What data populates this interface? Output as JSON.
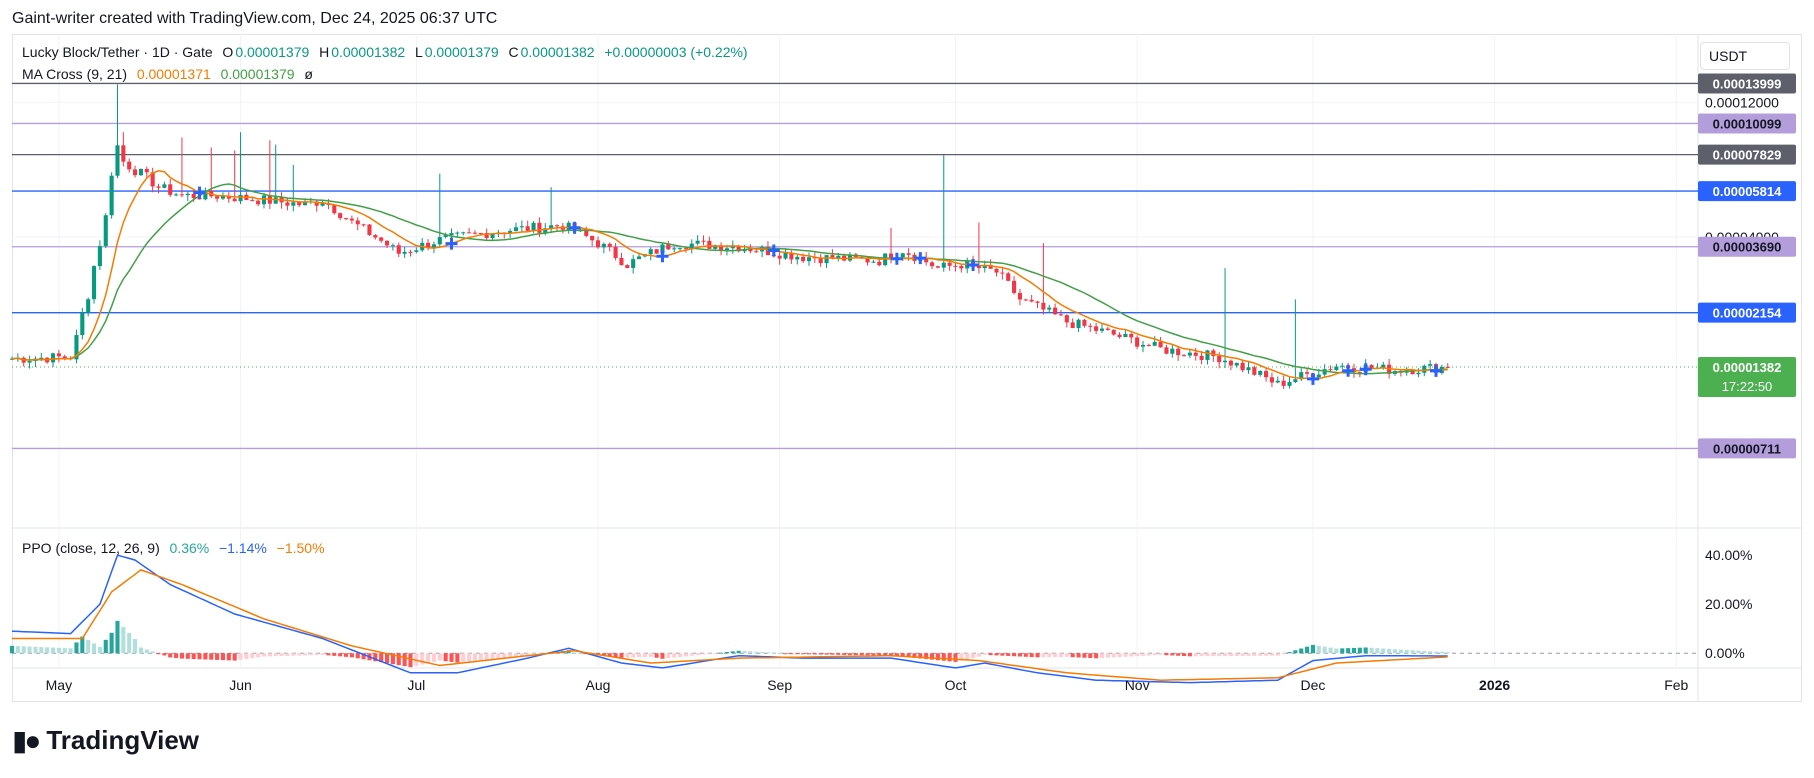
{
  "header": {
    "credit": "Gaint-writer created with TradingView.com, Dec 24, 2025 06:37 UTC"
  },
  "legend": {
    "symbol": "Lucky Block/Tether · 1D · Gate",
    "o_label": "O",
    "o": "0.00001379",
    "h_label": "H",
    "h": "0.00001382",
    "l_label": "L",
    "l": "0.00001379",
    "c_label": "C",
    "c": "0.00001382",
    "change": "+0.00000003 (+0.22%)",
    "ma_label": "MA Cross (9, 21)",
    "ma_fast": "0.00001371",
    "ma_slow": "0.00001379",
    "ma_extra": "ø",
    "ppo_label": "PPO (close, 12, 26, 9)",
    "ppo_hist": "0.36%",
    "ppo_line": "−1.14%",
    "ppo_signal": "−1.50%"
  },
  "currency": "USDT",
  "footer": {
    "logo_text": "TradingView"
  },
  "colors": {
    "up": "#089981",
    "down": "#f23645",
    "ma_fast": "#f57c00",
    "ma_slow": "#43a047",
    "ppo_line": "#2962ff",
    "ppo_signal": "#f57c00",
    "h_gray": "#5d606b",
    "h_blue": "#2962ff",
    "h_purple": "#b39ddb",
    "last_green": "#4caf50",
    "label_dark": "#5d606b"
  },
  "chart_data": {
    "type": "candlestick",
    "x_range": [
      "2025-04-23",
      "2026-02-03"
    ],
    "y_range": [
      4.3e-06,
      0.000144
    ],
    "y_ticks": [
      "0.00012000",
      "0.00004000"
    ],
    "x_ticks": [
      {
        "label": "May",
        "date": "2025-05-01"
      },
      {
        "label": "Jun",
        "date": "2025-06-01"
      },
      {
        "label": "Jul",
        "date": "2025-07-01"
      },
      {
        "label": "Aug",
        "date": "2025-08-01"
      },
      {
        "label": "Sep",
        "date": "2025-09-01"
      },
      {
        "label": "Oct",
        "date": "2025-10-01"
      },
      {
        "label": "Nov",
        "date": "2025-11-01"
      },
      {
        "label": "Dec",
        "date": "2025-12-01"
      },
      {
        "label": "2026",
        "date": "2026-01-01"
      },
      {
        "label": "Feb",
        "date": "2026-02-01"
      }
    ],
    "horizontal_levels": [
      {
        "value": 0.00013999,
        "label": "0.00013999",
        "style": "gray"
      },
      {
        "value": 0.00010099,
        "label": "0.00010099",
        "style": "purple"
      },
      {
        "value": 7.829e-05,
        "label": "0.00007829",
        "style": "gray"
      },
      {
        "value": 5.814e-05,
        "label": "0.00005814",
        "style": "blue"
      },
      {
        "value": 3.69e-05,
        "label": "0.00003690",
        "style": "purple"
      },
      {
        "value": 2.154e-05,
        "label": "0.00002154",
        "style": "blue"
      },
      {
        "value": 7.11e-06,
        "label": "0.00000711",
        "style": "purple"
      }
    ],
    "last_price": {
      "value": 1.382e-05,
      "label": "0.00001382",
      "countdown": "17:22:50"
    },
    "close_anchors": [
      [
        "2025-04-23",
        1.48e-05
      ],
      [
        "2025-05-03",
        1.5e-05
      ],
      [
        "2025-05-04",
        1.75e-05
      ],
      [
        "2025-05-06",
        2.5e-05
      ],
      [
        "2025-05-08",
        3.8e-05
      ],
      [
        "2025-05-09",
        4.7e-05
      ],
      [
        "2025-05-10",
        6.8e-05
      ],
      [
        "2025-05-11",
        8.4e-05
      ],
      [
        "2025-05-12",
        7.4e-05
      ],
      [
        "2025-05-14",
        6.9e-05
      ],
      [
        "2025-05-16",
        6.5e-05
      ],
      [
        "2025-05-18",
        6e-05
      ],
      [
        "2025-05-22",
        5.6e-05
      ],
      [
        "2025-05-28",
        5.6e-05
      ],
      [
        "2025-06-05",
        5.4e-05
      ],
      [
        "2025-06-12",
        5.2e-05
      ],
      [
        "2025-06-15",
        5.4e-05
      ],
      [
        "2025-06-20",
        4.5e-05
      ],
      [
        "2025-06-28",
        3.5e-05
      ],
      [
        "2025-07-05",
        3.9e-05
      ],
      [
        "2025-07-15",
        4.2e-05
      ],
      [
        "2025-07-26",
        4.4e-05
      ],
      [
        "2025-08-01",
        3.8e-05
      ],
      [
        "2025-08-06",
        3.2e-05
      ],
      [
        "2025-08-14",
        3.8e-05
      ],
      [
        "2025-08-25",
        3.7e-05
      ],
      [
        "2025-09-05",
        3.4e-05
      ],
      [
        "2025-09-18",
        3.3e-05
      ],
      [
        "2025-09-22",
        3.6e-05
      ],
      [
        "2025-09-28",
        3.1e-05
      ],
      [
        "2025-10-02",
        3.2e-05
      ],
      [
        "2025-10-08",
        3e-05
      ],
      [
        "2025-10-12",
        2.4e-05
      ],
      [
        "2025-10-20",
        2e-05
      ],
      [
        "2025-10-28",
        1.8e-05
      ],
      [
        "2025-11-05",
        1.6e-05
      ],
      [
        "2025-11-15",
        1.5e-05
      ],
      [
        "2025-11-25",
        1.2e-05
      ],
      [
        "2025-12-05",
        1.4e-05
      ],
      [
        "2025-12-15",
        1.35e-05
      ],
      [
        "2025-12-24",
        1.382e-05
      ]
    ],
    "wick_spikes": [
      [
        "2025-05-11",
        0.000139
      ],
      [
        "2025-05-12",
        9.4e-05
      ],
      [
        "2025-05-22",
        9e-05
      ],
      [
        "2025-05-27",
        8.3e-05
      ],
      [
        "2025-05-31",
        8.1e-05
      ],
      [
        "2025-06-01",
        9.4e-05
      ],
      [
        "2025-06-06",
        8.8e-05
      ],
      [
        "2025-06-07",
        8.5e-05
      ],
      [
        "2025-06-10",
        7.2e-05
      ],
      [
        "2025-07-05",
        6.7e-05
      ],
      [
        "2025-07-24",
        6e-05
      ],
      [
        "2025-09-20",
        4.3e-05
      ],
      [
        "2025-09-29",
        7.8e-05
      ],
      [
        "2025-10-05",
        4.5e-05
      ],
      [
        "2025-10-16",
        3.8e-05
      ],
      [
        "2025-11-16",
        3.1e-05
      ],
      [
        "2025-11-28",
        2.4e-05
      ]
    ],
    "ma_cross_markers": [
      "2025-05-25",
      "2025-07-07",
      "2025-07-28",
      "2025-08-12",
      "2025-08-31",
      "2025-09-21",
      "2025-09-25",
      "2025-10-04",
      "2025-12-01",
      "2025-12-07",
      "2025-12-10",
      "2025-12-22"
    ],
    "ppo": {
      "y_range": [
        -15,
        47
      ],
      "y_ticks": [
        {
          "value": 40,
          "label": "40.00%"
        },
        {
          "value": 20,
          "label": "20.00%"
        },
        {
          "value": 0,
          "label": "0.00%"
        }
      ],
      "line_anchors": [
        [
          "2025-04-23",
          9
        ],
        [
          "2025-05-03",
          8
        ],
        [
          "2025-05-08",
          20
        ],
        [
          "2025-05-11",
          40
        ],
        [
          "2025-05-14",
          38
        ],
        [
          "2025-05-20",
          28
        ],
        [
          "2025-05-31",
          16
        ],
        [
          "2025-06-15",
          6
        ],
        [
          "2025-06-30",
          -8
        ],
        [
          "2025-07-08",
          -8
        ],
        [
          "2025-07-20",
          -2
        ],
        [
          "2025-07-27",
          2
        ],
        [
          "2025-08-05",
          -4
        ],
        [
          "2025-08-12",
          -6
        ],
        [
          "2025-08-25",
          -1
        ],
        [
          "2025-09-05",
          -2
        ],
        [
          "2025-09-20",
          -2
        ],
        [
          "2025-10-01",
          -6
        ],
        [
          "2025-10-06",
          -4
        ],
        [
          "2025-10-15",
          -8
        ],
        [
          "2025-10-25",
          -11
        ],
        [
          "2025-11-10",
          -12
        ],
        [
          "2025-11-25",
          -11
        ],
        [
          "2025-12-01",
          -3
        ],
        [
          "2025-12-10",
          -1
        ],
        [
          "2025-12-24",
          -1.14
        ]
      ],
      "signal_anchors": [
        [
          "2025-04-23",
          6
        ],
        [
          "2025-05-05",
          6
        ],
        [
          "2025-05-10",
          25
        ],
        [
          "2025-05-15",
          34
        ],
        [
          "2025-05-22",
          28
        ],
        [
          "2025-06-05",
          14
        ],
        [
          "2025-06-20",
          3
        ],
        [
          "2025-07-05",
          -5
        ],
        [
          "2025-07-20",
          -1
        ],
        [
          "2025-07-28",
          1
        ],
        [
          "2025-08-10",
          -4
        ],
        [
          "2025-08-25",
          -2
        ],
        [
          "2025-09-20",
          -1
        ],
        [
          "2025-10-05",
          -3
        ],
        [
          "2025-10-20",
          -8
        ],
        [
          "2025-11-05",
          -11
        ],
        [
          "2025-11-25",
          -10
        ],
        [
          "2025-12-05",
          -4
        ],
        [
          "2025-12-24",
          -1.5
        ]
      ]
    }
  }
}
